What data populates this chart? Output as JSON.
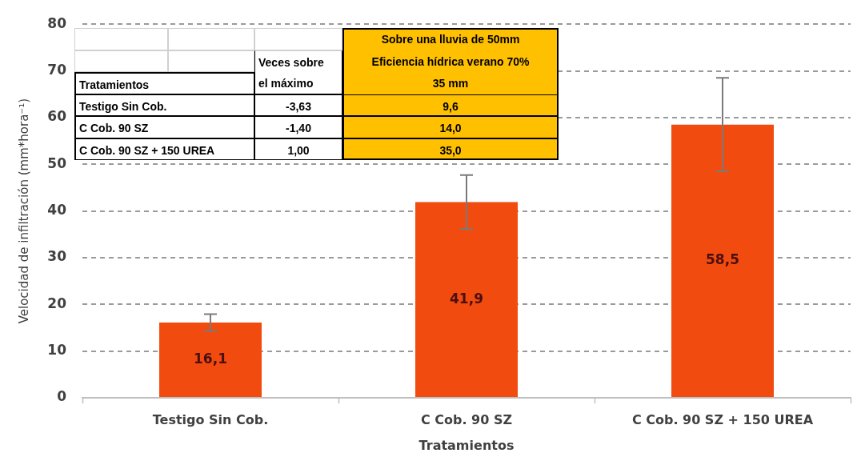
{
  "chart_data": {
    "type": "bar",
    "categories": [
      "Testigo Sin Cob.",
      "C Cob. 90 SZ",
      "C Cob. 90 SZ + 150 UREA"
    ],
    "values": [
      16.1,
      41.9,
      58.5
    ],
    "color": "#f24b0f",
    "errors": [
      1.8,
      5.8,
      10
    ],
    "value_labels": [
      "16,1",
      "41,9",
      "58,5"
    ],
    "xlabel": "Tratamientos",
    "ylabel": "Velocidad de infiltración (mm*hora⁻¹)",
    "ylim": [
      0,
      80
    ],
    "yticks": [
      0,
      10,
      20,
      30,
      40,
      50,
      60,
      70,
      80
    ],
    "grid": "y",
    "annotations": [
      "Sobre una lluvia de 50mm",
      "Eficiencia hídrica verano 70%",
      "Veces sobre el máximo",
      "Tratamientos",
      "35 mm",
      "Testigo Sin Cob.",
      "-3,63",
      "9,6",
      "C Cob. 90 SZ",
      "-1,40",
      "14,0",
      "C Cob. 90 SZ + 150 UREA",
      "1,00",
      "35,0"
    ]
  }
}
